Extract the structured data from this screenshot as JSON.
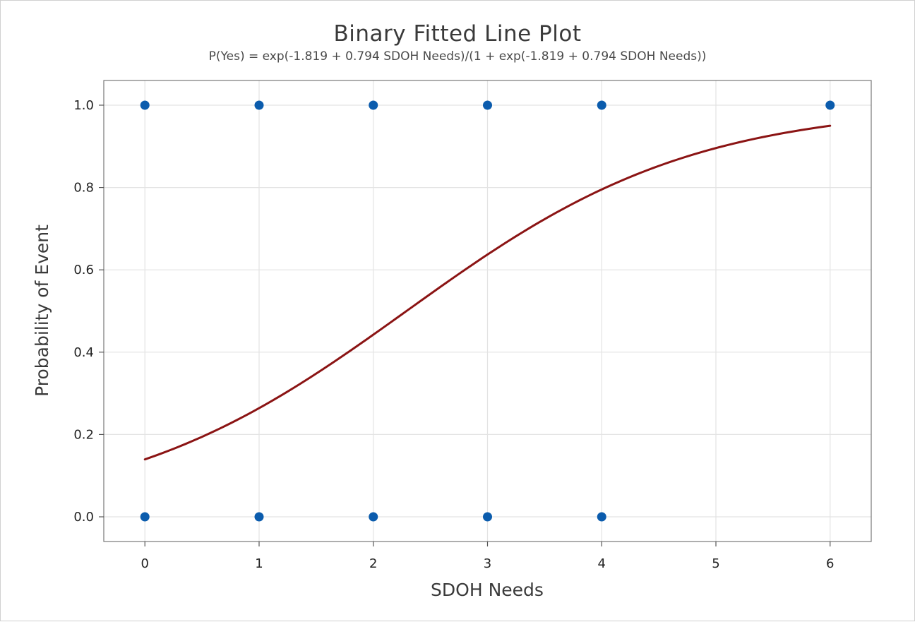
{
  "chart_data": {
    "type": "scatter",
    "title": "Binary Fitted Line Plot",
    "subtitle": "P(Yes) = exp(-1.819 + 0.794 SDOH Needs)/(1 + exp(-1.819 + 0.794 SDOH Needs))",
    "xlabel": "SDOH Needs",
    "ylabel": "Probability of Event",
    "xlim": [
      -0.36,
      6.36
    ],
    "ylim": [
      -0.06,
      1.06
    ],
    "xticks": [
      "0",
      "1",
      "2",
      "3",
      "4",
      "5",
      "6"
    ],
    "yticks": [
      "0.0",
      "0.2",
      "0.4",
      "0.6",
      "0.8",
      "1.0"
    ],
    "grid": true,
    "points": [
      {
        "x": 0,
        "y": 1
      },
      {
        "x": 1,
        "y": 1
      },
      {
        "x": 2,
        "y": 1
      },
      {
        "x": 3,
        "y": 1
      },
      {
        "x": 4,
        "y": 1
      },
      {
        "x": 6,
        "y": 1
      },
      {
        "x": 0,
        "y": 0
      },
      {
        "x": 1,
        "y": 0
      },
      {
        "x": 2,
        "y": 0
      },
      {
        "x": 3,
        "y": 0
      },
      {
        "x": 4,
        "y": 0
      }
    ],
    "fit": {
      "model": "logistic",
      "intercept": -1.819,
      "slope": 0.794,
      "x_range": [
        0,
        6
      ]
    },
    "colors": {
      "points": "#0b5cad",
      "fit_line": "#8b1414"
    }
  }
}
